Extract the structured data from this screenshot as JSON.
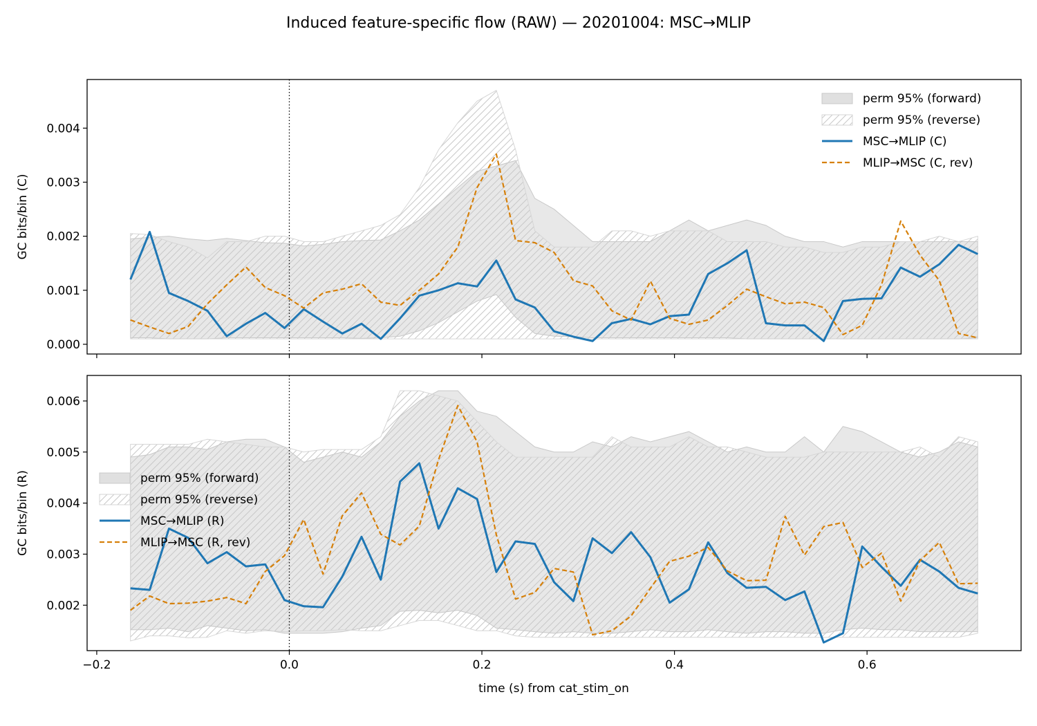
{
  "figure": {
    "title": "Induced feature-specific flow (RAW) — 20201004: MSC→MLIP",
    "xlabel": "time (s) from cat_stim_on"
  },
  "chart_data": [
    {
      "type": "line",
      "panel": "top",
      "ylabel": "GC bits/bin (C)",
      "xlim": [
        -0.21,
        0.76
      ],
      "ylim": [
        -0.00018,
        0.0049
      ],
      "xticks": [
        -0.2,
        0.0,
        0.2,
        0.4,
        0.6
      ],
      "xtick_labels": [],
      "yticks": [
        0.0,
        0.001,
        0.002,
        0.003,
        0.004
      ],
      "ytick_labels": [
        "0.000",
        "0.001",
        "0.002",
        "0.003",
        "0.004"
      ],
      "vline_x": 0.0,
      "legend_position": "upper right",
      "legend_labels": [
        "perm 95% (forward)",
        "perm 95% (reverse)",
        "MSC→MLIP (C)",
        "MLIP→MSC (C, rev)"
      ],
      "colors": {
        "forward": "#1f77b4",
        "reverse": "#d6800a",
        "band_fill": "#e0e0e0",
        "band_edge": "#c8c8c8",
        "hatch": "#c8c8c8"
      },
      "x": [
        -0.165,
        -0.145,
        -0.125,
        -0.105,
        -0.085,
        -0.065,
        -0.045,
        -0.025,
        -0.005,
        0.015,
        0.035,
        0.055,
        0.075,
        0.095,
        0.115,
        0.135,
        0.155,
        0.175,
        0.195,
        0.215,
        0.235,
        0.255,
        0.275,
        0.295,
        0.315,
        0.335,
        0.355,
        0.375,
        0.395,
        0.415,
        0.435,
        0.455,
        0.475,
        0.495,
        0.515,
        0.535,
        0.555,
        0.575,
        0.595,
        0.615,
        0.635,
        0.655,
        0.675,
        0.695,
        0.715
      ],
      "series": [
        {
          "name": "MSC→MLIP (C)",
          "style": "solid",
          "values": [
            0.0012,
            0.00208,
            0.00095,
            0.0008,
            0.00062,
            0.00015,
            0.00038,
            0.00058,
            0.0003,
            0.00065,
            0.00042,
            0.0002,
            0.00038,
            0.0001,
            0.00048,
            0.0009,
            0.001,
            0.00113,
            0.00107,
            0.00155,
            0.00083,
            0.00068,
            0.00024,
            0.00014,
            6e-05,
            0.00039,
            0.00047,
            0.00037,
            0.00052,
            0.00055,
            0.0013,
            0.0015,
            0.00174,
            0.00039,
            0.00035,
            0.00035,
            6e-05,
            0.0008,
            0.00084,
            0.00085,
            0.00142,
            0.00125,
            0.00148,
            0.00184,
            0.00167
          ]
        },
        {
          "name": "MLIP→MSC (C, rev)",
          "style": "dashed",
          "values": [
            0.00045,
            0.00032,
            0.0002,
            0.00033,
            0.00075,
            0.0011,
            0.00143,
            0.00105,
            0.0009,
            0.00067,
            0.00095,
            0.00102,
            0.00112,
            0.00078,
            0.00072,
            0.001,
            0.0013,
            0.0018,
            0.0029,
            0.00352,
            0.00192,
            0.00188,
            0.0017,
            0.00118,
            0.00108,
            0.00062,
            0.00045,
            0.00117,
            0.00048,
            0.00037,
            0.00045,
            0.00072,
            0.00102,
            0.00088,
            0.00075,
            0.00078,
            0.00068,
            0.00018,
            0.00035,
            0.0011,
            0.00228,
            0.00165,
            0.00118,
            0.0002,
            0.00012
          ]
        }
      ],
      "bands": [
        {
          "name": "perm 95% (forward)",
          "lower": [
            0.00012,
            0.00012,
            0.0001,
            0.0001,
            0.0001,
            0.00012,
            0.00012,
            0.00012,
            0.00012,
            0.00012,
            0.00012,
            0.00012,
            0.00011,
            0.00012,
            0.00015,
            0.00025,
            0.0004,
            0.0006,
            0.0008,
            0.00092,
            0.0005,
            0.0002,
            0.00015,
            0.00014,
            0.00012,
            0.00012,
            0.00012,
            0.00012,
            0.00012,
            0.00012,
            0.00012,
            0.00012,
            0.0001,
            0.0001,
            0.0001,
            0.0001,
            0.0001,
            0.0001,
            0.0001,
            0.0001,
            0.0001,
            0.0001,
            0.0001,
            0.0001,
            0.00012
          ],
          "upper": [
            0.00195,
            0.00198,
            0.002,
            0.00195,
            0.00192,
            0.00196,
            0.00192,
            0.00188,
            0.00187,
            0.00182,
            0.00185,
            0.0019,
            0.00192,
            0.00193,
            0.0021,
            0.0023,
            0.0026,
            0.0029,
            0.0032,
            0.0033,
            0.0034,
            0.0027,
            0.0025,
            0.0022,
            0.0019,
            0.0019,
            0.0019,
            0.0019,
            0.0021,
            0.0023,
            0.0021,
            0.0022,
            0.0023,
            0.0022,
            0.002,
            0.0019,
            0.0019,
            0.0018,
            0.0019,
            0.0019,
            0.0019,
            0.0019,
            0.0019,
            0.0019,
            0.0019
          ]
        },
        {
          "name": "perm 95% (reverse)",
          "lower": [
            0.0001,
            0.0001,
            0.0001,
            0.0001,
            0.0001,
            0.0001,
            0.0001,
            0.0001,
            0.0001,
            0.0001,
            0.0001,
            0.0001,
            0.0001,
            0.0001,
            0.0001,
            0.0001,
            0.0001,
            0.0001,
            0.0001,
            0.0001,
            0.0001,
            0.0001,
            0.0001,
            0.0001,
            0.0001,
            0.0001,
            0.0001,
            0.0001,
            0.0001,
            0.0001,
            0.0001,
            0.0001,
            0.0001,
            0.0001,
            0.0001,
            0.0001,
            0.0001,
            0.0001,
            0.0001,
            0.0001,
            0.0001,
            0.0001,
            0.0001,
            0.0001,
            0.0001
          ],
          "upper": [
            0.00205,
            0.00203,
            0.0019,
            0.0018,
            0.0016,
            0.0019,
            0.0019,
            0.002,
            0.002,
            0.0019,
            0.0019,
            0.002,
            0.0021,
            0.0022,
            0.0024,
            0.0029,
            0.0036,
            0.0041,
            0.0045,
            0.0047,
            0.0036,
            0.0021,
            0.0018,
            0.0018,
            0.0018,
            0.0021,
            0.0021,
            0.002,
            0.0021,
            0.0021,
            0.0021,
            0.0019,
            0.0019,
            0.0019,
            0.0018,
            0.0018,
            0.0017,
            0.0017,
            0.0018,
            0.0018,
            0.0019,
            0.0019,
            0.002,
            0.0019,
            0.002
          ]
        }
      ]
    },
    {
      "type": "line",
      "panel": "bottom",
      "ylabel": "GC bits/bin (R)",
      "xlim": [
        -0.21,
        0.76
      ],
      "ylim": [
        0.00111,
        0.0065
      ],
      "xticks": [
        -0.2,
        0.0,
        0.2,
        0.4,
        0.6
      ],
      "xtick_labels": [
        "−0.2",
        "0.0",
        "0.2",
        "0.4",
        "0.6"
      ],
      "yticks": [
        0.002,
        0.003,
        0.004,
        0.005,
        0.006
      ],
      "ytick_labels": [
        "0.002",
        "0.003",
        "0.004",
        "0.005",
        "0.006"
      ],
      "vline_x": 0.0,
      "legend_position": "center left",
      "legend_labels": [
        "perm 95% (forward)",
        "perm 95% (reverse)",
        "MSC→MLIP (R)",
        "MLIP→MSC (R, rev)"
      ],
      "colors": {
        "forward": "#1f77b4",
        "reverse": "#d6800a",
        "band_fill": "#e0e0e0",
        "band_edge": "#c8c8c8",
        "hatch": "#c8c8c8"
      },
      "x": [
        -0.165,
        -0.145,
        -0.125,
        -0.105,
        -0.085,
        -0.065,
        -0.045,
        -0.025,
        -0.005,
        0.015,
        0.035,
        0.055,
        0.075,
        0.095,
        0.115,
        0.135,
        0.155,
        0.175,
        0.195,
        0.215,
        0.235,
        0.255,
        0.275,
        0.295,
        0.315,
        0.335,
        0.355,
        0.375,
        0.395,
        0.415,
        0.435,
        0.455,
        0.475,
        0.495,
        0.515,
        0.535,
        0.555,
        0.575,
        0.595,
        0.615,
        0.635,
        0.655,
        0.675,
        0.695,
        0.715
      ],
      "series": [
        {
          "name": "MSC→MLIP (R)",
          "style": "solid",
          "values": [
            0.00233,
            0.0023,
            0.0035,
            0.00332,
            0.00282,
            0.00304,
            0.00276,
            0.0028,
            0.0021,
            0.00198,
            0.00196,
            0.00256,
            0.00334,
            0.0025,
            0.00442,
            0.00478,
            0.0035,
            0.00429,
            0.00408,
            0.00265,
            0.00325,
            0.0032,
            0.00245,
            0.00208,
            0.00331,
            0.00302,
            0.00343,
            0.00294,
            0.00205,
            0.00231,
            0.00323,
            0.00263,
            0.00234,
            0.00236,
            0.0021,
            0.00227,
            0.00127,
            0.00145,
            0.00315,
            0.00275,
            0.00238,
            0.00289,
            0.00266,
            0.00234,
            0.00223
          ]
        },
        {
          "name": "MLIP→MSC (R, rev)",
          "style": "dashed",
          "values": [
            0.0019,
            0.00218,
            0.00203,
            0.00204,
            0.00208,
            0.00215,
            0.00203,
            0.00266,
            0.00297,
            0.00368,
            0.00261,
            0.00375,
            0.0042,
            0.00339,
            0.00318,
            0.00355,
            0.00485,
            0.00591,
            0.0052,
            0.00338,
            0.00212,
            0.00225,
            0.00272,
            0.00265,
            0.00142,
            0.0015,
            0.00179,
            0.00233,
            0.00286,
            0.00296,
            0.00313,
            0.00267,
            0.00248,
            0.00249,
            0.00374,
            0.00298,
            0.00354,
            0.00362,
            0.00274,
            0.00302,
            0.00208,
            0.00287,
            0.00323,
            0.00242,
            0.00243
          ]
        }
      ],
      "bands": [
        {
          "name": "perm 95% (forward)",
          "lower": [
            0.00152,
            0.00152,
            0.00155,
            0.00148,
            0.0016,
            0.00155,
            0.0015,
            0.00152,
            0.00145,
            0.00145,
            0.00145,
            0.00148,
            0.00155,
            0.0016,
            0.00188,
            0.0019,
            0.00185,
            0.0019,
            0.0018,
            0.00155,
            0.00152,
            0.00148,
            0.00145,
            0.00148,
            0.00145,
            0.00145,
            0.00148,
            0.00152,
            0.00148,
            0.00148,
            0.00152,
            0.00148,
            0.00145,
            0.00148,
            0.00148,
            0.00145,
            0.00145,
            0.00152,
            0.00155,
            0.00152,
            0.00152,
            0.00148,
            0.00148,
            0.00148,
            0.00148
          ],
          "upper": [
            0.0049,
            0.00495,
            0.0051,
            0.0051,
            0.00505,
            0.0052,
            0.00525,
            0.00525,
            0.0051,
            0.0048,
            0.0049,
            0.005,
            0.0049,
            0.0052,
            0.0057,
            0.006,
            0.0062,
            0.0062,
            0.0058,
            0.0057,
            0.0054,
            0.0051,
            0.005,
            0.005,
            0.0052,
            0.0051,
            0.0053,
            0.0052,
            0.0053,
            0.0054,
            0.0052,
            0.005,
            0.0051,
            0.005,
            0.005,
            0.0053,
            0.005,
            0.0055,
            0.0054,
            0.0052,
            0.005,
            0.0049,
            0.005,
            0.0052,
            0.0051
          ]
        },
        {
          "name": "perm 95% (reverse)",
          "lower": [
            0.0013,
            0.0014,
            0.0014,
            0.00136,
            0.00137,
            0.0015,
            0.00145,
            0.0015,
            0.00148,
            0.0015,
            0.0015,
            0.00152,
            0.0015,
            0.0015,
            0.0016,
            0.0017,
            0.0017,
            0.0016,
            0.0015,
            0.0015,
            0.0014,
            0.00137,
            0.00137,
            0.00137,
            0.00137,
            0.00137,
            0.00137,
            0.00137,
            0.00137,
            0.00137,
            0.00137,
            0.00137,
            0.00137,
            0.00137,
            0.00137,
            0.00137,
            0.00137,
            0.00137,
            0.00137,
            0.00137,
            0.00137,
            0.00137,
            0.00137,
            0.00137,
            0.00145
          ],
          "upper": [
            0.00515,
            0.00515,
            0.00515,
            0.00515,
            0.00525,
            0.0052,
            0.00515,
            0.0051,
            0.0051,
            0.005,
            0.00505,
            0.00505,
            0.00505,
            0.0053,
            0.0062,
            0.0062,
            0.0061,
            0.006,
            0.0056,
            0.0052,
            0.0049,
            0.0049,
            0.0049,
            0.0049,
            0.0049,
            0.0053,
            0.0051,
            0.0051,
            0.0051,
            0.0053,
            0.0051,
            0.0051,
            0.005,
            0.0049,
            0.0049,
            0.0049,
            0.005,
            0.005,
            0.005,
            0.005,
            0.005,
            0.0051,
            0.0049,
            0.0053,
            0.0052
          ]
        }
      ]
    }
  ]
}
